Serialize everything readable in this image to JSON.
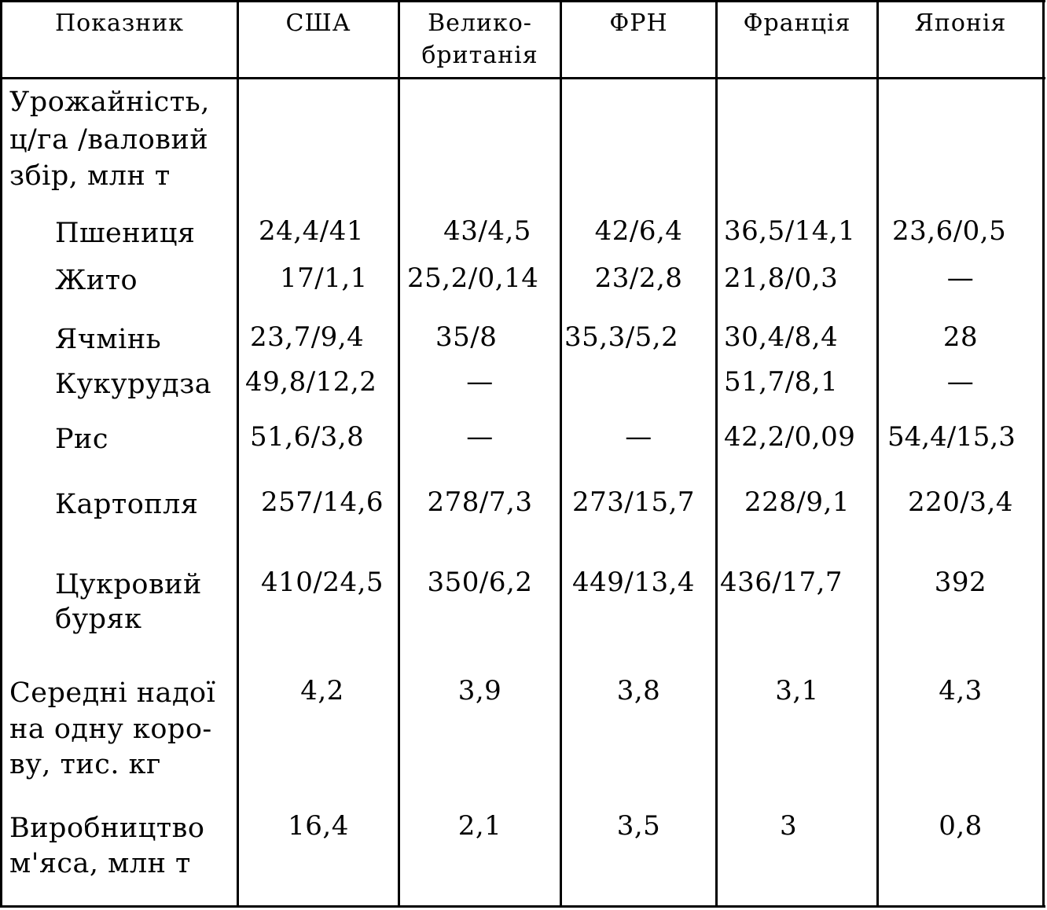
{
  "table": {
    "headers": [
      "Показник",
      "США",
      "Велико-",
      "британія",
      "ФРН",
      "Франція",
      "Японія"
    ],
    "group_label_lines": [
      "Урожайність,",
      "ц/га /валовий",
      "збір, млн т"
    ],
    "rows": [
      {
        "label": "Пшениця",
        "values": [
          "24,4/41",
          "43/4,5",
          "42/6,4",
          "36,5/14,1",
          "23,6/0,5"
        ]
      },
      {
        "label": "Жито",
        "values": [
          "17/1,1",
          "25,2/0,14",
          "23/2,8",
          "21,8/0,3",
          "—"
        ]
      },
      {
        "label": "Ячмінь",
        "values": [
          "23,7/9,4",
          "35/8",
          "35,3/5,2",
          "30,4/8,4",
          "28"
        ]
      },
      {
        "label": "Кукурудза",
        "values": [
          "49,8/12,2",
          "—",
          "",
          "51,7/8,1",
          "—"
        ]
      },
      {
        "label": "Рис",
        "values": [
          "51,6/3,8",
          "—",
          "—",
          "42,2/0,09",
          "54,4/15,3"
        ]
      },
      {
        "label": "Картопля",
        "values": [
          "257/14,6",
          "278/7,3",
          "273/15,7",
          "228/9,1",
          "220/3,4"
        ]
      },
      {
        "label_lines": [
          "Цукровий",
          "буряк"
        ],
        "values": [
          "410/24,5",
          "350/6,2",
          "449/13,4",
          "436/17,7",
          "392"
        ]
      }
    ],
    "milk": {
      "label_lines": [
        "Середні надої",
        "на одну коро-",
        "ву, тис. кг"
      ],
      "values": [
        "4,2",
        "3,9",
        "3,8",
        "3,1",
        "4,3"
      ]
    },
    "meat": {
      "label_lines": [
        "Виробництво",
        "м'яса, млн т"
      ],
      "values": [
        "16,4",
        "2,1",
        "3,5",
        "3",
        "0,8"
      ]
    }
  }
}
